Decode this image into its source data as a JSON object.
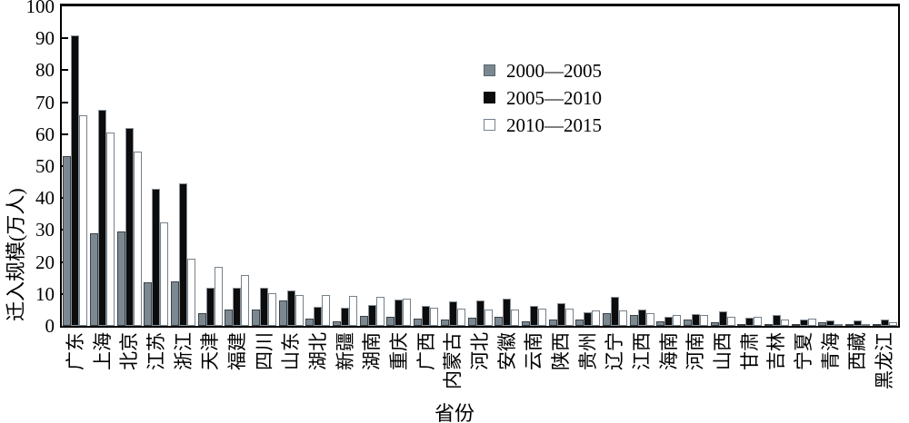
{
  "chart_data": {
    "type": "bar",
    "title": "",
    "xlabel": "省份",
    "ylabel": "迁入规模(万人)",
    "ylim": [
      0,
      100
    ],
    "ytick_interval": 10,
    "yticks": [
      0,
      10,
      20,
      30,
      40,
      50,
      60,
      70,
      80,
      90,
      100
    ],
    "grid": false,
    "legend_position": "inside-upper-middle",
    "categories": [
      "广东",
      "上海",
      "北京",
      "江苏",
      "浙江",
      "天津",
      "福建",
      "四川",
      "山东",
      "湖北",
      "新疆",
      "湖南",
      "重庆",
      "广西",
      "内蒙古",
      "河北",
      "安徽",
      "云南",
      "陕西",
      "贵州",
      "辽宁",
      "江西",
      "海南",
      "河南",
      "山西",
      "甘肃",
      "吉林",
      "宁夏",
      "青海",
      "西藏",
      "黑龙江"
    ],
    "series": [
      {
        "name": "2000—2005",
        "style": "gray-filled",
        "color": "#7c8890",
        "values": [
          53,
          29,
          29.5,
          13.5,
          14,
          4,
          5,
          5,
          8,
          2.3,
          1.4,
          3,
          2.9,
          2.2,
          2.1,
          2.7,
          2.8,
          1.5,
          2.1,
          1.9,
          4,
          3.3,
          1.5,
          2,
          1,
          0.6,
          0.5,
          0.4,
          1,
          0.3,
          0.7
        ]
      },
      {
        "name": "2005—2010",
        "style": "black-filled",
        "color": "#0c0c0c",
        "values": [
          91,
          67.5,
          62,
          42.8,
          44.5,
          11.9,
          11.9,
          11.8,
          11.2,
          5.9,
          5.7,
          6.6,
          8.3,
          6.2,
          7.6,
          7.9,
          8.5,
          6.2,
          7.1,
          4.2,
          9,
          5.2,
          2.9,
          3.7,
          4.6,
          2.6,
          3.3,
          2,
          1.6,
          1.6,
          1.9
        ]
      },
      {
        "name": "2010—2015",
        "style": "white-outlined",
        "color": "#ffffff",
        "values": [
          66,
          60.5,
          54.5,
          32.5,
          21,
          18.6,
          15.8,
          10.3,
          9.6,
          9.7,
          9.4,
          9,
          8.5,
          5.7,
          5.4,
          5.2,
          5.2,
          5.4,
          5.4,
          4.8,
          4.7,
          4,
          3.5,
          3.3,
          2.9,
          2.9,
          2,
          2.4,
          0.7,
          0.5,
          1
        ]
      }
    ]
  },
  "figure": {
    "background": "#ffffff",
    "axis_color": "#000000"
  }
}
